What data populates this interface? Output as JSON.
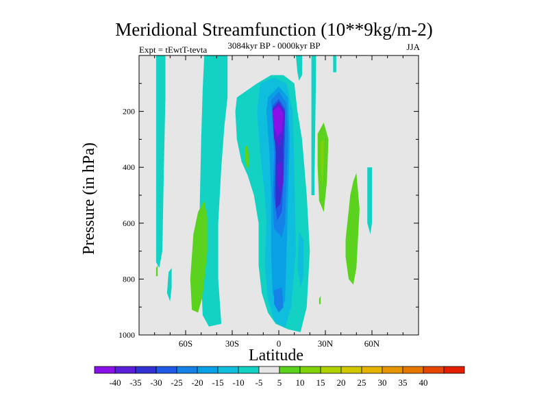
{
  "chart_data": {
    "type": "contour",
    "title": "Meridional Streamfunction (10**9kg/m-2)",
    "subtitle": "3084kyr BP - 0000kyr BP",
    "left_label": "Expt = tEwtT-tevta",
    "right_label": "JJA",
    "xlabel": "Latitude",
    "ylabel": "Pressure (in hPa)",
    "xlim": [
      -90,
      90
    ],
    "ylim": [
      1000,
      0
    ],
    "x_ticks": [
      {
        "value": -60,
        "label": "60S"
      },
      {
        "value": -30,
        "label": "30S"
      },
      {
        "value": 0,
        "label": "0"
      },
      {
        "value": 30,
        "label": "30N"
      },
      {
        "value": 60,
        "label": "60N"
      }
    ],
    "y_ticks": [
      {
        "value": 200,
        "label": "200"
      },
      {
        "value": 400,
        "label": "400"
      },
      {
        "value": 600,
        "label": "600"
      },
      {
        "value": 800,
        "label": "800"
      },
      {
        "value": 1000,
        "label": "1000"
      }
    ],
    "background_color": "#e6e6e6",
    "levels": [
      {
        "from": -45,
        "to": -40,
        "color": "#8a10e8"
      },
      {
        "from": -40,
        "to": -35,
        "color": "#5a1ed8"
      },
      {
        "from": -35,
        "to": -30,
        "color": "#3232d2"
      },
      {
        "from": -30,
        "to": -25,
        "color": "#1e5ae6"
      },
      {
        "from": -25,
        "to": -20,
        "color": "#1482e6"
      },
      {
        "from": -20,
        "to": -15,
        "color": "#0aa0e6"
      },
      {
        "from": -15,
        "to": -10,
        "color": "#0fbedc"
      },
      {
        "from": -10,
        "to": -5,
        "color": "#14d2c3"
      },
      {
        "from": -5,
        "to": 5,
        "color": "#e6e6e6"
      },
      {
        "from": 5,
        "to": 10,
        "color": "#5ad21e"
      },
      {
        "from": 10,
        "to": 15,
        "color": "#82d20a"
      },
      {
        "from": 15,
        "to": 20,
        "color": "#afd200"
      },
      {
        "from": 20,
        "to": 25,
        "color": "#d2c800"
      },
      {
        "from": 25,
        "to": 30,
        "color": "#e6b400"
      },
      {
        "from": 30,
        "to": 35,
        "color": "#e69600"
      },
      {
        "from": 35,
        "to": 40,
        "color": "#e67800"
      },
      {
        "from": 40,
        "to": 45,
        "color": "#e64600"
      },
      {
        "from": 45,
        "to": 50,
        "color": "#e61e00"
      }
    ],
    "colorbar_labels": [
      "-40",
      "-35",
      "-30",
      "-25",
      "-20",
      "-15",
      "-10",
      "-5",
      "5",
      "10",
      "15",
      "20",
      "25",
      "30",
      "35",
      "40"
    ],
    "regions": [
      {
        "band": -7.5,
        "points": [
          [
            -79,
            0
          ],
          [
            -73,
            0
          ],
          [
            -73,
            150
          ],
          [
            -74,
            400
          ],
          [
            -75,
            700
          ],
          [
            -77,
            760
          ],
          [
            -79,
            740
          ],
          [
            -79,
            400
          ]
        ]
      },
      {
        "band": -7.5,
        "points": [
          [
            -72,
            850
          ],
          [
            -71,
            775
          ],
          [
            -69,
            760
          ],
          [
            -69,
            830
          ],
          [
            -70,
            880
          ]
        ]
      },
      {
        "band": -7.5,
        "points": [
          [
            -48,
            0
          ],
          [
            -33,
            0
          ],
          [
            -33,
            150
          ],
          [
            -35,
            250
          ],
          [
            -37,
            400
          ],
          [
            -39,
            600
          ],
          [
            -39,
            800
          ],
          [
            -37,
            960
          ],
          [
            -45,
            970
          ],
          [
            -49,
            930
          ],
          [
            -50,
            800
          ],
          [
            -51,
            560
          ],
          [
            -50,
            300
          ],
          [
            -49,
            120
          ]
        ]
      },
      {
        "band": -7.5,
        "points": [
          [
            -27,
            150
          ],
          [
            -14,
            100
          ],
          [
            -5,
            70
          ],
          [
            3,
            70
          ],
          [
            10,
            100
          ],
          [
            12,
            200
          ],
          [
            15,
            300
          ],
          [
            18,
            500
          ],
          [
            20,
            700
          ],
          [
            18,
            900
          ],
          [
            14,
            990
          ],
          [
            6,
            980
          ],
          [
            -2,
            960
          ],
          [
            -7,
            920
          ],
          [
            -11,
            850
          ],
          [
            -13,
            750
          ],
          [
            -13,
            600
          ],
          [
            -16,
            500
          ],
          [
            -20,
            430
          ],
          [
            -24,
            380
          ],
          [
            -27,
            300
          ],
          [
            -28,
            200
          ]
        ]
      },
      {
        "band": -7.5,
        "points": [
          [
            11,
            0
          ],
          [
            15,
            0
          ],
          [
            15,
            70
          ],
          [
            13,
            90
          ],
          [
            12,
            60
          ]
        ]
      },
      {
        "band": -7.5,
        "points": [
          [
            21,
            0
          ],
          [
            24,
            0
          ],
          [
            24,
            50
          ],
          [
            23,
            450
          ],
          [
            23,
            500
          ],
          [
            21,
            500
          ]
        ]
      },
      {
        "band": -7.5,
        "points": [
          [
            35,
            0
          ],
          [
            37,
            0
          ],
          [
            37,
            60
          ],
          [
            35,
            60
          ]
        ]
      },
      {
        "band": -7.5,
        "points": [
          [
            57,
            400
          ],
          [
            60,
            400
          ],
          [
            60,
            600
          ],
          [
            59,
            640
          ],
          [
            57,
            600
          ]
        ]
      },
      {
        "band": -12.5,
        "points": [
          [
            -12,
            100
          ],
          [
            -3,
            80
          ],
          [
            5,
            100
          ],
          [
            9,
            200
          ],
          [
            10,
            400
          ],
          [
            11,
            700
          ],
          [
            8,
            900
          ],
          [
            4,
            975
          ],
          [
            -3,
            950
          ],
          [
            -7,
            870
          ],
          [
            -9,
            750
          ],
          [
            -8,
            600
          ],
          [
            -9,
            500
          ],
          [
            -12,
            350
          ],
          [
            -14,
            200
          ]
        ]
      },
      {
        "band": -17.5,
        "points": [
          [
            -7,
            150
          ],
          [
            0,
            110
          ],
          [
            6,
            150
          ],
          [
            7,
            300
          ],
          [
            6,
            500
          ],
          [
            5,
            700
          ],
          [
            4,
            880
          ],
          [
            0,
            910
          ],
          [
            -4,
            850
          ],
          [
            -5,
            700
          ],
          [
            -5,
            500
          ],
          [
            -6,
            350
          ],
          [
            -8,
            200
          ]
        ]
      },
      {
        "band": -12.5,
        "points": [
          [
            13,
            630
          ],
          [
            16,
            660
          ],
          [
            16,
            790
          ],
          [
            14,
            830
          ],
          [
            12,
            760
          ]
        ]
      },
      {
        "band": -22.5,
        "points": [
          [
            -5,
            160
          ],
          [
            0,
            130
          ],
          [
            5,
            170
          ],
          [
            6,
            300
          ],
          [
            5,
            450
          ],
          [
            4,
            600
          ],
          [
            2,
            650
          ],
          [
            -3,
            620
          ],
          [
            -4,
            500
          ],
          [
            -3,
            350
          ],
          [
            -4,
            250
          ]
        ]
      },
      {
        "band": -22.5,
        "points": [
          [
            -3,
            840
          ],
          [
            2,
            830
          ],
          [
            3,
            900
          ],
          [
            0,
            920
          ],
          [
            -3,
            890
          ]
        ]
      },
      {
        "band": -27.5,
        "points": [
          [
            -4,
            180
          ],
          [
            0,
            155
          ],
          [
            4,
            190
          ],
          [
            4,
            300
          ],
          [
            3,
            450
          ],
          [
            2,
            560
          ],
          [
            -1,
            590
          ],
          [
            -3,
            500
          ],
          [
            -2,
            350
          ],
          [
            -3,
            260
          ]
        ]
      },
      {
        "band": -32.5,
        "points": [
          [
            -4,
            190
          ],
          [
            0,
            165
          ],
          [
            4,
            200
          ],
          [
            3,
            320
          ],
          [
            3,
            440
          ],
          [
            1,
            530
          ],
          [
            -2,
            550
          ],
          [
            -2,
            450
          ],
          [
            -2,
            340
          ],
          [
            -3,
            270
          ]
        ]
      },
      {
        "band": -37.5,
        "points": [
          [
            -4,
            195
          ],
          [
            0,
            170
          ],
          [
            4,
            205
          ],
          [
            3,
            280
          ],
          [
            0,
            330
          ],
          [
            -3,
            300
          ]
        ]
      },
      {
        "band": -42.5,
        "points": [
          [
            -4,
            200
          ],
          [
            0,
            180
          ],
          [
            3,
            210
          ],
          [
            2,
            270
          ],
          [
            -1,
            290
          ],
          [
            -3,
            260
          ]
        ]
      },
      {
        "band": -37.5,
        "points": [
          [
            -1,
            390
          ],
          [
            2,
            380
          ],
          [
            3,
            450
          ],
          [
            1,
            490
          ],
          [
            -1,
            460
          ]
        ]
      },
      {
        "band": 7.5,
        "points": [
          [
            -55,
            640
          ],
          [
            -52,
            560
          ],
          [
            -48,
            520
          ],
          [
            -46,
            580
          ],
          [
            -46,
            700
          ],
          [
            -49,
            860
          ],
          [
            -52,
            920
          ],
          [
            -56,
            910
          ],
          [
            -57,
            800
          ]
        ]
      },
      {
        "band": 7.5,
        "points": [
          [
            -22,
            330
          ],
          [
            -20,
            320
          ],
          [
            -19,
            380
          ],
          [
            -20,
            410
          ],
          [
            -22,
            370
          ]
        ]
      },
      {
        "band": 7.5,
        "points": [
          [
            -79,
            760
          ],
          [
            -78,
            750
          ],
          [
            -78,
            790
          ],
          [
            -79,
            790
          ]
        ]
      },
      {
        "band": 7.5,
        "points": [
          [
            25,
            280
          ],
          [
            29,
            240
          ],
          [
            32,
            300
          ],
          [
            31,
            450
          ],
          [
            29,
            560
          ],
          [
            26,
            520
          ],
          [
            25,
            400
          ]
        ]
      },
      {
        "band": 12.5,
        "points": [
          [
            27,
            310
          ],
          [
            29,
            300
          ],
          [
            29,
            380
          ],
          [
            28,
            460
          ],
          [
            27,
            400
          ]
        ]
      },
      {
        "band": 7.5,
        "points": [
          [
            43,
            660
          ],
          [
            46,
            500
          ],
          [
            48,
            450
          ],
          [
            50,
            420
          ],
          [
            52,
            550
          ],
          [
            50,
            760
          ],
          [
            48,
            820
          ],
          [
            45,
            800
          ],
          [
            43,
            720
          ]
        ]
      },
      {
        "band": 7.5,
        "points": [
          [
            26,
            870
          ],
          [
            27,
            860
          ],
          [
            27,
            890
          ],
          [
            26,
            890
          ]
        ]
      }
    ]
  }
}
